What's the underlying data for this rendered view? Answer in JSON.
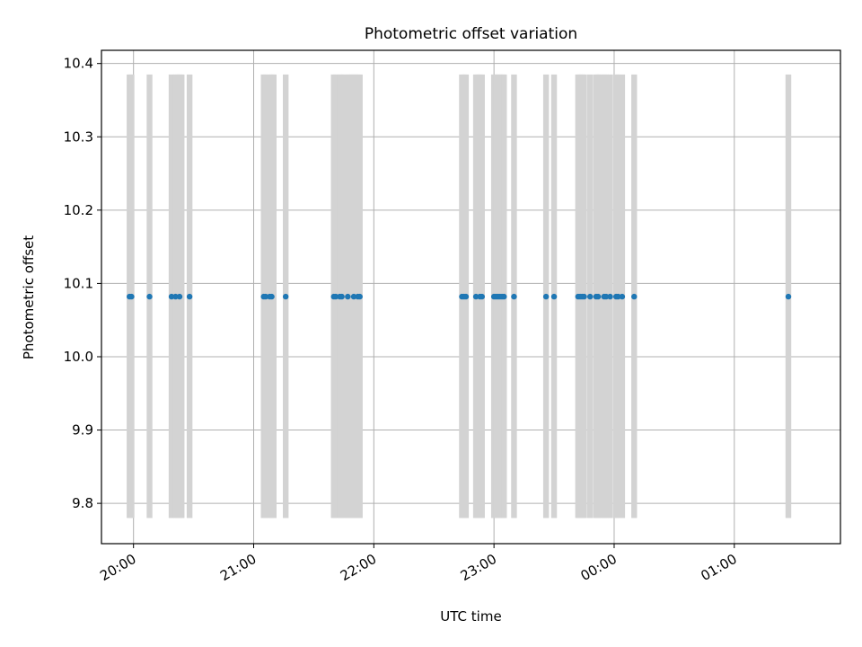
{
  "chart_data": {
    "type": "scatter",
    "title": "Photometric offset variation",
    "xlabel": "UTC time",
    "ylabel": "Photometric offset",
    "x_axis": "time",
    "x_tick_labels": [
      "20:00",
      "21:00",
      "22:00",
      "23:00",
      "00:00",
      "01:00"
    ],
    "y_ticks": [
      9.8,
      9.9,
      10.0,
      10.1,
      10.2,
      10.3,
      10.4
    ],
    "xlim": [
      "19:44",
      "01:53"
    ],
    "ylim": [
      9.745,
      10.418
    ],
    "grid": true,
    "marker_color": "#1f77b4",
    "band_color": "#d3d3d3",
    "bands": {
      "y_range": [
        9.78,
        10.385
      ],
      "x": [
        "19:58",
        "19:59",
        "20:08",
        "20:19",
        "20:21",
        "20:22",
        "20:23",
        "20:24",
        "20:28",
        "21:05",
        "21:06",
        "21:08",
        "21:09",
        "21:10",
        "21:16",
        "21:40",
        "21:41",
        "21:43",
        "21:44",
        "21:45",
        "21:47",
        "21:48",
        "21:49",
        "21:50",
        "21:51",
        "21:52",
        "21:53",
        "22:44",
        "22:45",
        "22:46",
        "22:51",
        "22:52",
        "22:53",
        "22:54",
        "23:00",
        "23:01",
        "23:02",
        "23:03",
        "23:04",
        "23:05",
        "23:10",
        "23:26",
        "23:30",
        "23:42",
        "23:43",
        "23:44",
        "23:45",
        "23:48",
        "23:51",
        "23:52",
        "23:53",
        "23:55",
        "23:56",
        "23:58",
        "00:01",
        "00:02",
        "00:04",
        "00:10",
        "01:27"
      ]
    },
    "points": {
      "y": 10.082,
      "x": [
        "19:58",
        "19:59",
        "20:08",
        "20:19",
        "20:21",
        "20:23",
        "20:28",
        "21:05",
        "21:06",
        "21:08",
        "21:09",
        "21:16",
        "21:40",
        "21:41",
        "21:43",
        "21:44",
        "21:47",
        "21:50",
        "21:52",
        "21:53",
        "22:44",
        "22:45",
        "22:46",
        "22:51",
        "22:53",
        "22:54",
        "23:00",
        "23:01",
        "23:02",
        "23:03",
        "23:04",
        "23:05",
        "23:10",
        "23:26",
        "23:30",
        "23:42",
        "23:43",
        "23:44",
        "23:45",
        "23:48",
        "23:51",
        "23:52",
        "23:55",
        "23:56",
        "23:58",
        "00:01",
        "00:02",
        "00:04",
        "00:10",
        "01:27"
      ]
    }
  }
}
